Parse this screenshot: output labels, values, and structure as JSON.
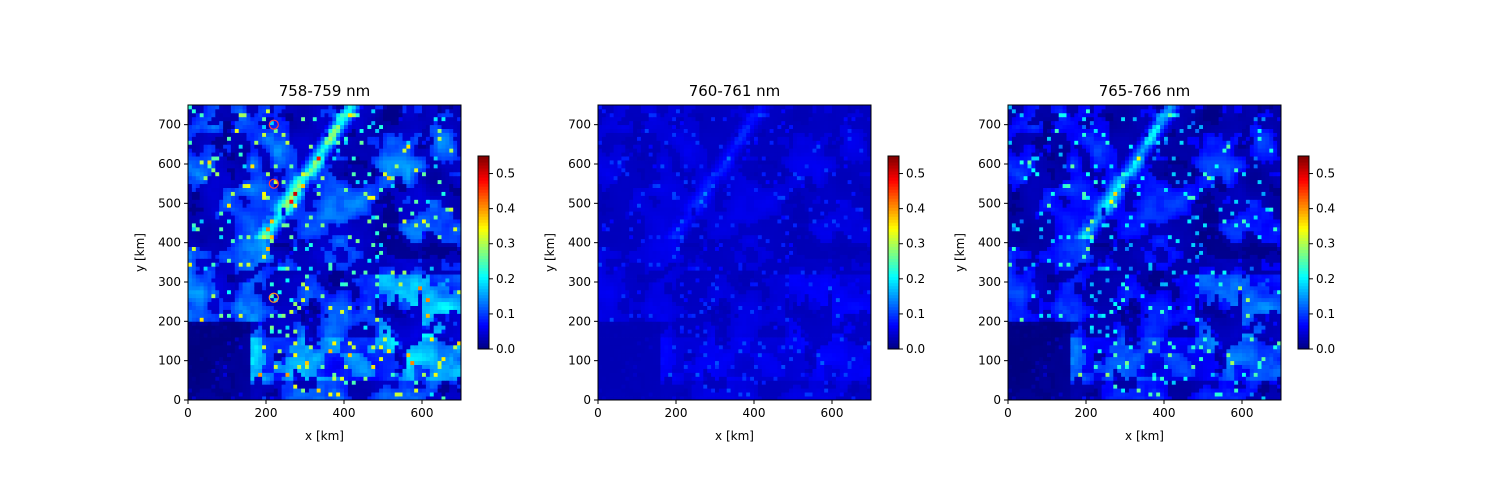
{
  "chart_data": [
    {
      "type": "heatmap",
      "title": "758-759 nm",
      "xlabel": "x [km]",
      "ylabel": "y [km]",
      "xlim": [
        0,
        700
      ],
      "ylim": [
        0,
        750
      ],
      "xticks": [
        "0",
        "200",
        "400",
        "600"
      ],
      "yticks": [
        "0",
        "100",
        "200",
        "300",
        "400",
        "500",
        "600",
        "700"
      ],
      "colorbar": {
        "min": 0.0,
        "max": 0.55,
        "ticks": [
          "0.0",
          "0.1",
          "0.2",
          "0.3",
          "0.4",
          "0.5"
        ],
        "colormap": "jet"
      },
      "intensity": "high",
      "markers": [
        {
          "x": 220,
          "y": 700,
          "shape": "circle",
          "color": "#ff3b3b"
        },
        {
          "x": 220,
          "y": 550,
          "shape": "circle",
          "color": "#ff3b3b"
        },
        {
          "x": 220,
          "y": 260,
          "shape": "circle",
          "color": "#ff9020"
        }
      ]
    },
    {
      "type": "heatmap",
      "title": "760-761 nm",
      "xlabel": "x [km]",
      "ylabel": "y [km]",
      "xlim": [
        0,
        700
      ],
      "ylim": [
        0,
        750
      ],
      "xticks": [
        "0",
        "200",
        "400",
        "600"
      ],
      "yticks": [
        "0",
        "100",
        "200",
        "300",
        "400",
        "500",
        "600",
        "700"
      ],
      "colorbar": {
        "min": 0.0,
        "max": 0.55,
        "ticks": [
          "0.0",
          "0.1",
          "0.2",
          "0.3",
          "0.4",
          "0.5"
        ],
        "colormap": "jet"
      },
      "intensity": "low",
      "markers": []
    },
    {
      "type": "heatmap",
      "title": "765-766 nm",
      "xlabel": "x [km]",
      "ylabel": "y [km]",
      "xlim": [
        0,
        700
      ],
      "ylim": [
        0,
        750
      ],
      "xticks": [
        "0",
        "200",
        "400",
        "600"
      ],
      "yticks": [
        "0",
        "100",
        "200",
        "300",
        "400",
        "500",
        "600",
        "700"
      ],
      "colorbar": {
        "min": 0.0,
        "max": 0.55,
        "ticks": [
          "0.0",
          "0.1",
          "0.2",
          "0.3",
          "0.4",
          "0.5"
        ],
        "colormap": "jet"
      },
      "intensity": "medium",
      "markers": []
    }
  ]
}
